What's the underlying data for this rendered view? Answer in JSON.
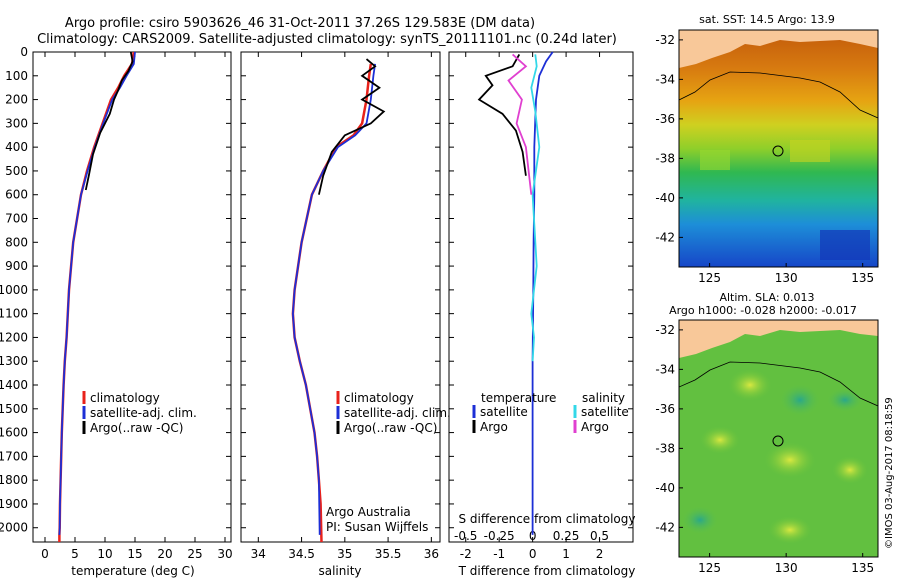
{
  "title": {
    "line1": "Argo profile: csiro 5903626_46 31-Oct-2011 37.26S 129.583E (DM data)",
    "line2": "Climatology: CARS2009. Satellite-adjusted climatology: synTS_20111101.nc (0.24d later)"
  },
  "colors": {
    "climatology": "#e8221b",
    "satellite": "#1d2fd6",
    "argo": "#000000",
    "salinity_satellite": "#33d8e8",
    "salinity_argo": "#e040d0",
    "land": "#f8c899"
  },
  "chart_data": [
    {
      "type": "line",
      "id": "temperature",
      "xlabel": "temperature (deg C)",
      "xlim": [
        -2,
        31
      ],
      "xticks": [
        0,
        5,
        10,
        15,
        20,
        25,
        30
      ],
      "ylim": [
        2060,
        0
      ],
      "yticks": [
        0,
        100,
        200,
        300,
        400,
        500,
        600,
        700,
        800,
        900,
        1000,
        1100,
        1200,
        1300,
        1400,
        1500,
        1600,
        1700,
        1800,
        1900,
        2000
      ],
      "legend": [
        "climatology",
        "satellite-adj. clim.",
        "Argo(..raw -QC)"
      ],
      "series": [
        {
          "name": "climatology",
          "x": [
            14.8,
            14.5,
            13.2,
            12.2,
            11.0,
            9.6,
            8.2,
            7.0,
            6.0,
            4.7,
            4.0,
            3.6,
            3.3,
            3.1,
            2.95,
            2.8,
            2.7,
            2.6,
            2.5,
            2.45,
            2.4,
            2.4
          ],
          "y": [
            0,
            50,
            100,
            150,
            200,
            300,
            400,
            500,
            600,
            800,
            1000,
            1200,
            1300,
            1400,
            1500,
            1600,
            1700,
            1800,
            1900,
            2000,
            2030,
            2060
          ]
        },
        {
          "name": "satellite-adj. clim.",
          "x": [
            15.0,
            14.8,
            13.6,
            12.5,
            11.2,
            9.7,
            8.3,
            7.1,
            6.0,
            4.7,
            4.0,
            3.6,
            3.3,
            3.1,
            2.95,
            2.8,
            2.7,
            2.6,
            2.5,
            2.45,
            2.4
          ],
          "y": [
            0,
            50,
            100,
            150,
            200,
            300,
            400,
            500,
            600,
            800,
            1000,
            1200,
            1300,
            1400,
            1500,
            1600,
            1700,
            1800,
            1900,
            2000,
            2030
          ]
        },
        {
          "name": "Argo(..raw -QC)",
          "x": [
            14.3,
            14.6,
            13.9,
            12.8,
            12.2,
            11.5,
            10.8,
            9.2,
            8.0,
            7.3,
            6.8
          ],
          "y": [
            0,
            40,
            80,
            120,
            160,
            200,
            260,
            340,
            430,
            520,
            580
          ]
        }
      ]
    },
    {
      "type": "line",
      "id": "salinity",
      "xlabel": "salinity",
      "xlim": [
        33.8,
        36.1
      ],
      "xticks": [
        34,
        34.5,
        35,
        35.5,
        36
      ],
      "ylim": [
        2060,
        0
      ],
      "legend": [
        "climatology",
        "satellite-adj. clim.",
        "Argo(..raw -QC)"
      ],
      "series": [
        {
          "name": "climatology",
          "x": [
            35.3,
            35.28,
            35.25,
            35.2,
            35.1,
            34.9,
            34.75,
            34.62,
            34.5,
            34.42,
            34.4,
            34.42,
            34.48,
            34.55,
            34.6,
            34.65,
            34.68,
            34.7,
            34.72,
            34.73
          ],
          "y": [
            50,
            100,
            200,
            300,
            350,
            400,
            500,
            600,
            800,
            1000,
            1100,
            1200,
            1300,
            1400,
            1500,
            1600,
            1700,
            1800,
            1900,
            2060
          ]
        },
        {
          "name": "satellite-adj. clim.",
          "x": [
            35.35,
            35.33,
            35.3,
            35.25,
            35.12,
            34.92,
            34.75,
            34.62,
            34.5,
            34.42,
            34.4,
            34.42,
            34.48,
            34.55,
            34.6,
            34.65,
            34.68,
            34.7,
            34.71
          ],
          "y": [
            50,
            100,
            200,
            300,
            350,
            400,
            500,
            600,
            800,
            1000,
            1100,
            1200,
            1300,
            1400,
            1500,
            1600,
            1700,
            1800,
            2030
          ]
        },
        {
          "name": "Argo(..raw -QC)",
          "x": [
            35.25,
            35.35,
            35.2,
            35.4,
            35.2,
            35.45,
            35.3,
            35.0,
            34.85,
            34.75,
            34.7
          ],
          "y": [
            30,
            60,
            100,
            150,
            200,
            250,
            300,
            350,
            420,
            520,
            600
          ]
        }
      ]
    },
    {
      "type": "line",
      "id": "difference",
      "xlabel": "T difference from climatology",
      "xlabel2": "S difference from climatology",
      "xlim": [
        -2.5,
        3
      ],
      "xticks": [
        "-2",
        "-1",
        "0",
        "1",
        "2"
      ],
      "sticks": [
        "-0.5",
        "-0.25",
        "0",
        "0.25",
        "0.5"
      ],
      "ylim": [
        2060,
        0
      ],
      "legend": {
        "temperature": "temperature",
        "salinity": "salinity",
        "satellite": "satellite",
        "argo": "Argo"
      },
      "series": [
        {
          "name": "temperature satellite",
          "x": [
            0.6,
            0.4,
            0.2,
            0.1,
            0.05,
            0.05,
            0.03,
            0.02,
            0.0,
            0.0,
            0.0
          ],
          "y": [
            0,
            40,
            100,
            200,
            400,
            600,
            800,
            1000,
            1300,
            1600,
            2030
          ]
        },
        {
          "name": "temperature Argo",
          "x": [
            -0.4,
            -0.6,
            -1.4,
            -1.2,
            -1.6,
            -0.9,
            -0.5,
            -0.3,
            -0.2
          ],
          "y": [
            10,
            60,
            100,
            140,
            200,
            260,
            330,
            420,
            520
          ]
        },
        {
          "name": "salinity satellite",
          "x": [
            0.02,
            0.03,
            -0.01,
            0.02,
            0.05,
            0.0,
            0.03,
            -0.01,
            0.01,
            0.0
          ],
          "y": [
            10,
            60,
            150,
            250,
            400,
            600,
            900,
            1100,
            1200,
            1300
          ]
        },
        {
          "name": "salinity Argo",
          "x": [
            -0.15,
            -0.05,
            -0.18,
            -0.08,
            -0.12,
            -0.05,
            -0.03,
            -0.01
          ],
          "y": [
            10,
            60,
            120,
            200,
            300,
            400,
            500,
            600
          ]
        }
      ]
    },
    {
      "type": "heatmap",
      "id": "sst-map",
      "title": "sat. SST: 14.5 Argo: 13.9",
      "xticks": [
        125,
        130,
        135
      ],
      "yticks": [
        -32,
        -34,
        -36,
        -38,
        -40,
        -42
      ],
      "xlim": [
        123,
        136
      ],
      "ylim": [
        -43.5,
        -31.5
      ],
      "marker": {
        "lon": 129.583,
        "lat": -37.26
      }
    },
    {
      "type": "heatmap",
      "id": "sla-map",
      "title1": "Altim. SLA: 0.013",
      "title2": "Argo h1000: -0.028 h2000: -0.017",
      "xticks": [
        125,
        130,
        135
      ],
      "yticks": [
        -32,
        -34,
        -36,
        -38,
        -40,
        -42
      ],
      "xlim": [
        123,
        136
      ],
      "ylim": [
        -43.5,
        -31.5
      ],
      "marker": {
        "lon": 129.583,
        "lat": -37.26
      }
    }
  ],
  "annotation": {
    "credit1": "Argo Australia",
    "credit2": "PI: Susan Wijffels",
    "imos": "©IMOS 03-Aug-2017 08:18:59"
  }
}
